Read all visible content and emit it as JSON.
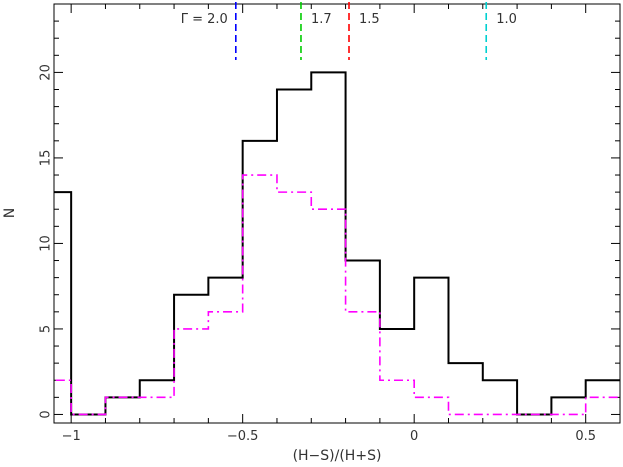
{
  "chart_data": {
    "type": "histogram",
    "xlabel": "(H−S)/(H+S)",
    "ylabel": "N",
    "xlim": [
      -1.05,
      0.6
    ],
    "ylim": [
      -0.5,
      24
    ],
    "x_ticks": [
      -1,
      -0.5,
      0,
      0.5
    ],
    "x_tick_labels": [
      "−1",
      "−0.5",
      "0",
      "0.5"
    ],
    "y_ticks": [
      0,
      5,
      10,
      15,
      20
    ],
    "y_tick_labels": [
      "0",
      "5",
      "10",
      "15",
      "20"
    ],
    "bin_edges": [
      -1.1,
      -1.0,
      -0.9,
      -0.8,
      -0.7,
      -0.6,
      -0.5,
      -0.4,
      -0.3,
      -0.2,
      -0.1,
      0.0,
      0.1,
      0.2,
      0.3,
      0.4,
      0.5,
      0.6
    ],
    "series": [
      {
        "style": "solid",
        "color": "#000000",
        "values": [
          13,
          0,
          1,
          2,
          7,
          8,
          16,
          19,
          20,
          9,
          5,
          8,
          3,
          2,
          0,
          1,
          2
        ]
      },
      {
        "style": "dash-dot",
        "color": "#ff00ff",
        "values": [
          2,
          0,
          1,
          1,
          5,
          6,
          14,
          13,
          12,
          6,
          2,
          1,
          0,
          0,
          0,
          0,
          1
        ]
      }
    ],
    "markers": [
      {
        "x": -0.52,
        "label": "Γ = 2.0",
        "color": "#0000ff"
      },
      {
        "x": -0.33,
        "label": "1.7",
        "color": "#00cc00"
      },
      {
        "x": -0.19,
        "label": "1.5",
        "color": "#ff0000"
      },
      {
        "x": 0.21,
        "label": "1.0",
        "color": "#00d0d0"
      }
    ],
    "grid": false
  }
}
